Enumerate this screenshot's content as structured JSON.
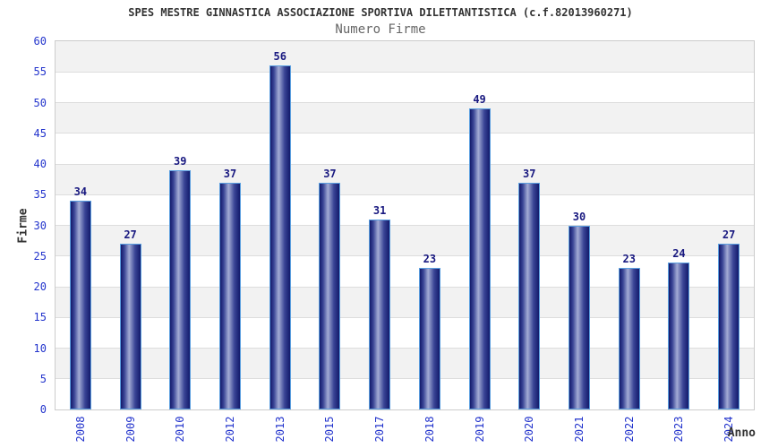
{
  "chart_data": {
    "type": "bar",
    "title": "SPES MESTRE GINNASTICA ASSOCIAZIONE SPORTIVA DILETTANTISTICA (c.f.82013960271)",
    "subtitle": "Numero Firme",
    "xlabel": "Anno",
    "ylabel": "Firme",
    "categories": [
      "2008",
      "2009",
      "2010",
      "2012",
      "2013",
      "2015",
      "2017",
      "2018",
      "2019",
      "2020",
      "2021",
      "2022",
      "2023",
      "2024"
    ],
    "values": [
      34,
      27,
      39,
      37,
      56,
      37,
      31,
      23,
      49,
      37,
      30,
      23,
      24,
      27
    ],
    "ylim": [
      0,
      60
    ],
    "ytick_step": 5,
    "grid": "horizontal-bands-alternating",
    "legend_position": "none",
    "colors": {
      "tick_label": "#2233cc",
      "value_label": "#191980",
      "title": "#333333",
      "subtitle": "#666666",
      "band_gray": "#f2f2f2",
      "band_white": "#ffffff",
      "gridline": "#dddddd",
      "plot_border": "#cccccc",
      "bar_border": "#5b9fe0",
      "bar_dark": "#131a6b",
      "bar_mid": "#3a4596",
      "bar_light": "#a3abd4"
    }
  }
}
